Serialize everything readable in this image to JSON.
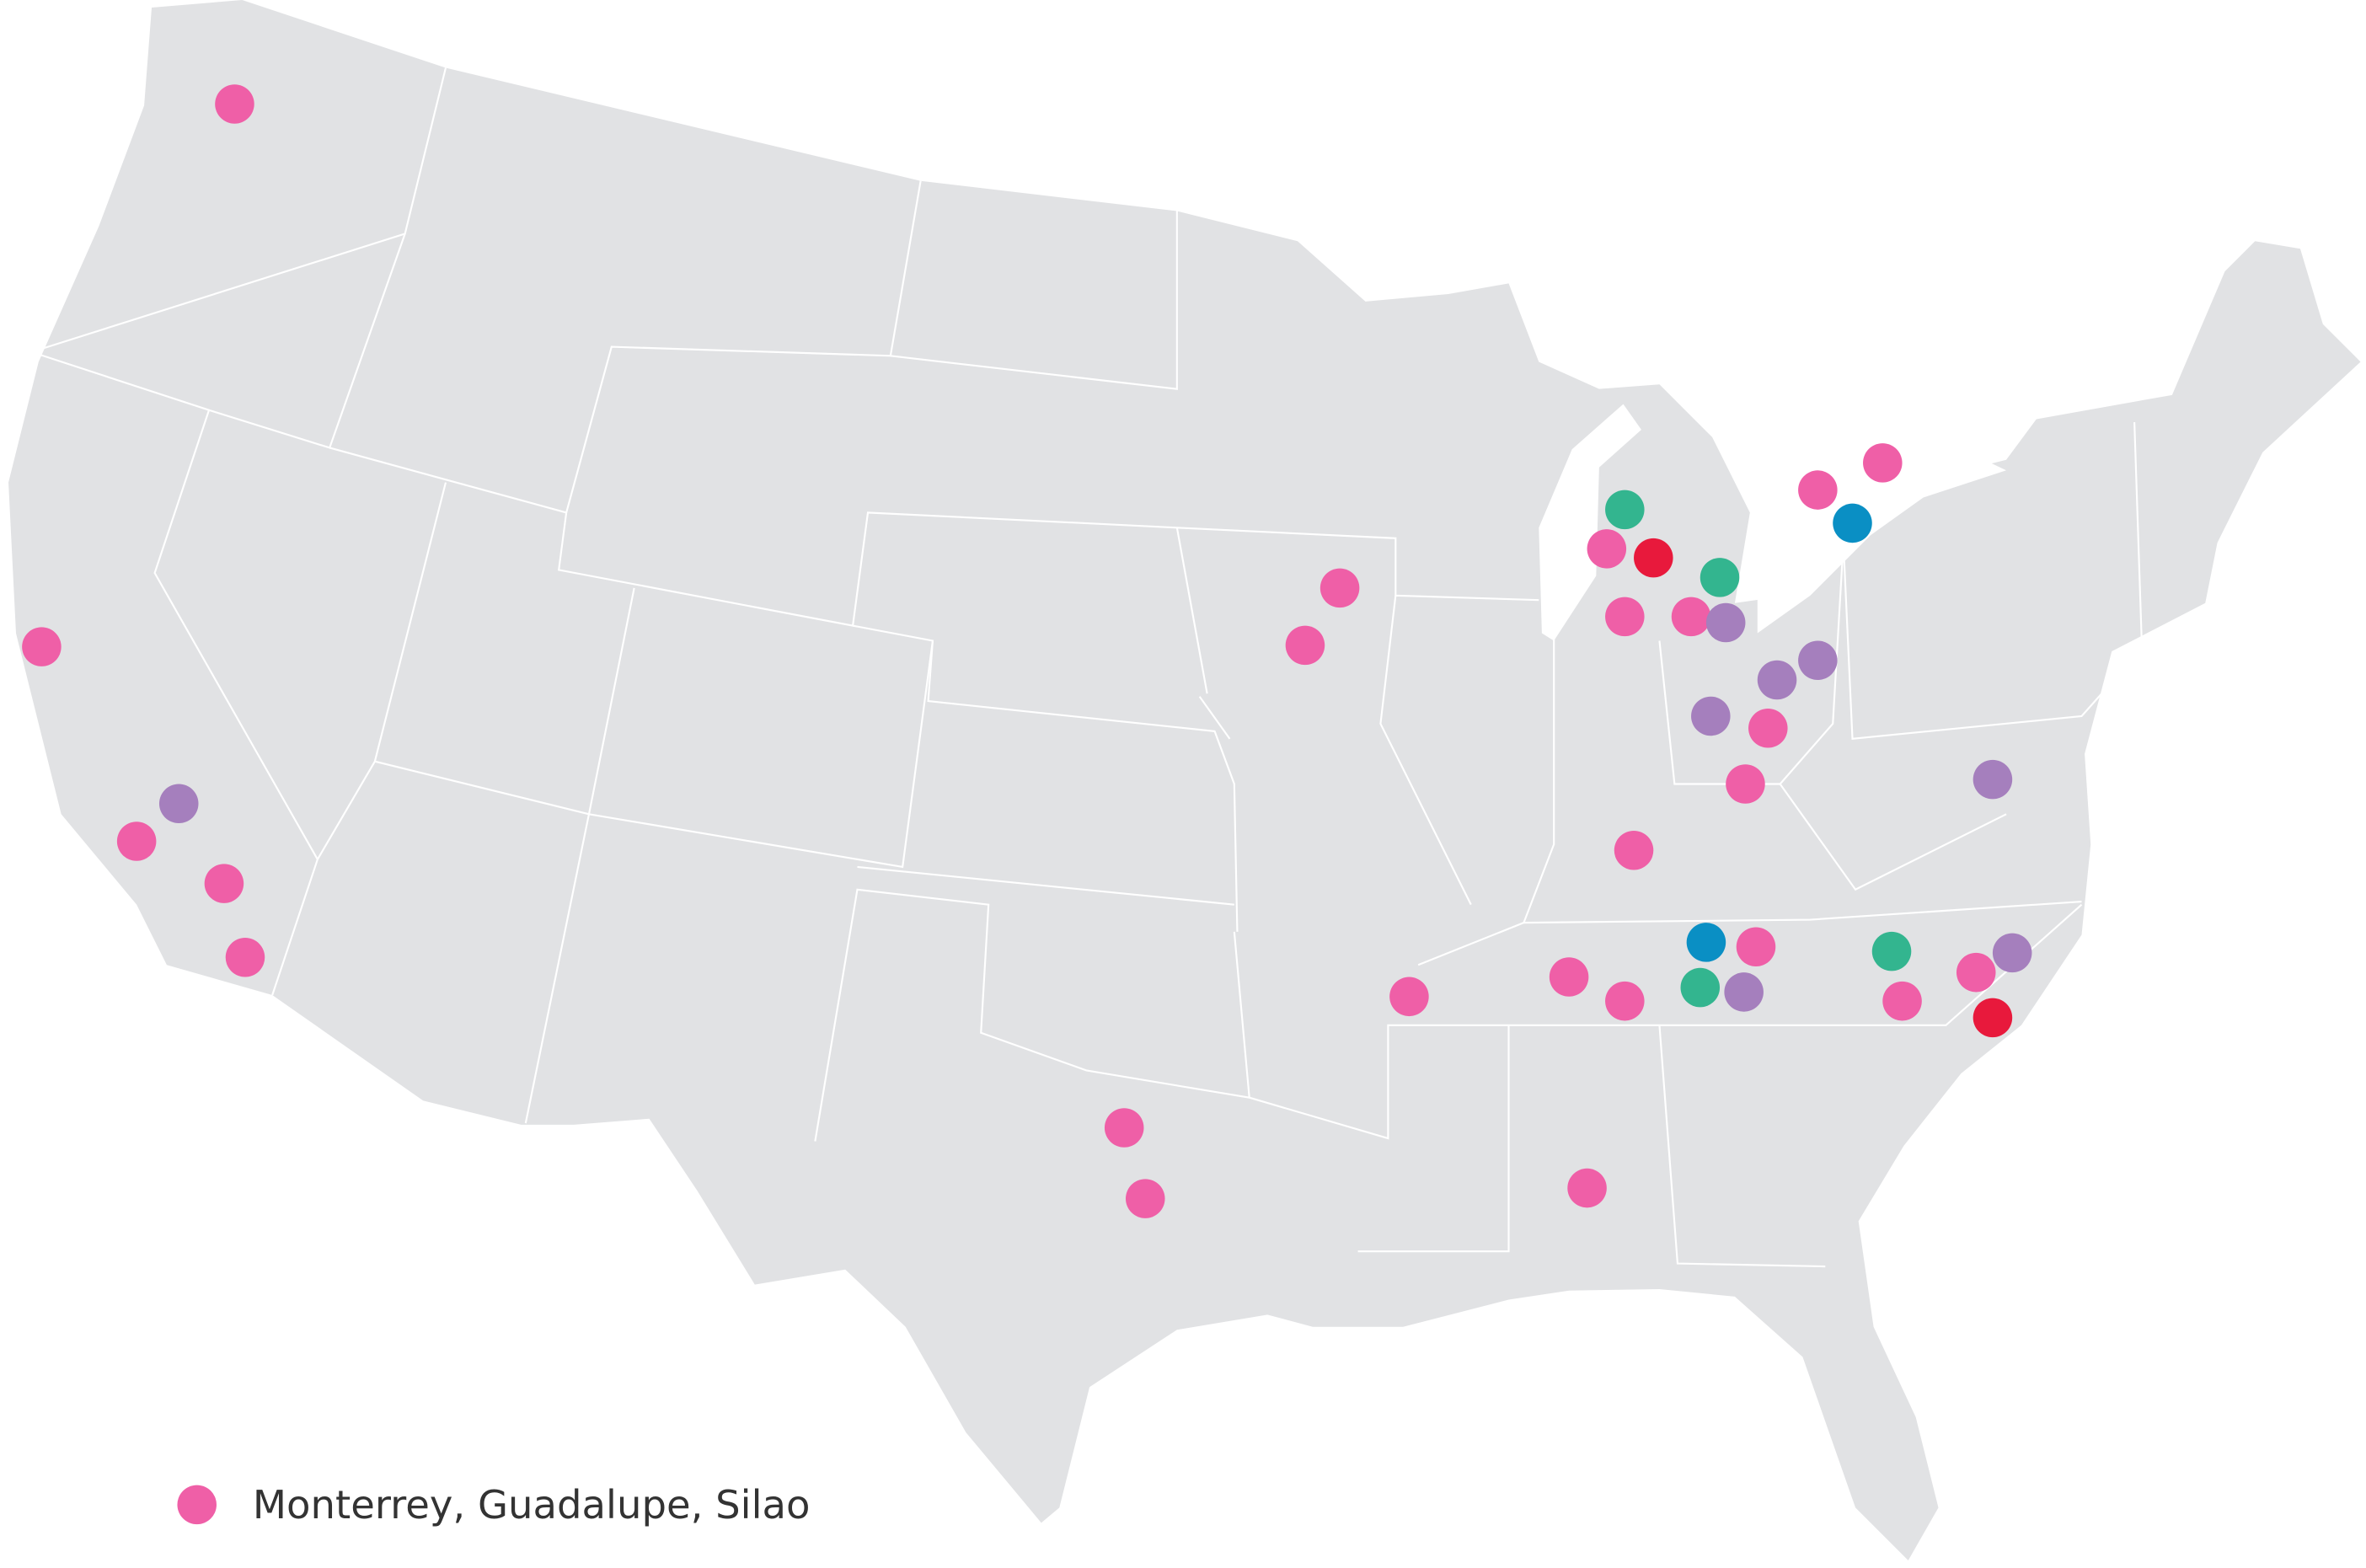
{
  "legend": {
    "label": "Monterrey, Guadalupe, Silao"
  }
}
